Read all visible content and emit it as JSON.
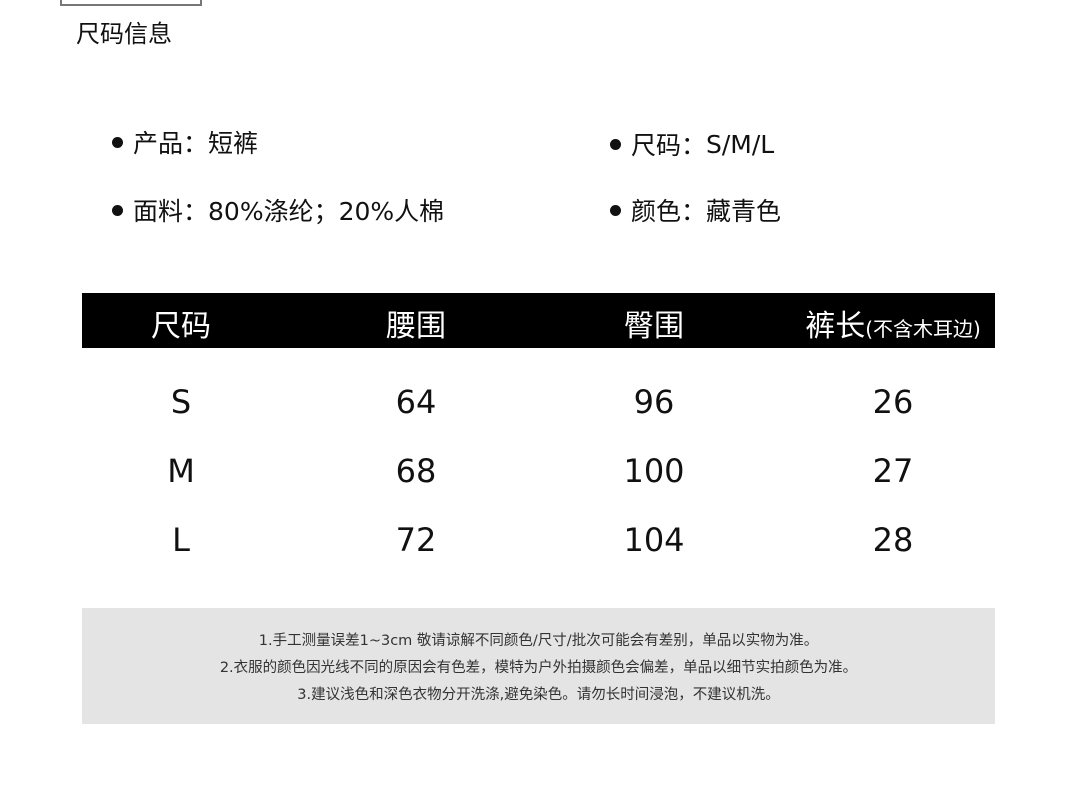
{
  "section_title": "尺码信息",
  "specs": [
    {
      "label": "产品：",
      "value": "短裤"
    },
    {
      "label": "尺码：",
      "value": "S/M/L"
    },
    {
      "label": "面料：",
      "value": "80%涤纶；20%人棉"
    },
    {
      "label": "颜色：",
      "value": "藏青色"
    }
  ],
  "table": {
    "headers": [
      "尺码",
      "腰围",
      "臀围",
      "裤长"
    ],
    "header_note": "(不含木耳边)",
    "rows": [
      [
        "S",
        "64",
        "96",
        "26"
      ],
      [
        "M",
        "68",
        "100",
        "27"
      ],
      [
        "L",
        "72",
        "104",
        "28"
      ]
    ]
  },
  "notes": [
    "1.手工测量误差1~3cm 敬请谅解不同颜色/尺寸/批次可能会有差别，单品以实物为准。",
    "2.衣服的颜色因光线不同的原因会有色差，模特为户外拍摄颜色会偏差，单品以细节实拍颜色为准。",
    "3.建议浅色和深色衣物分开洗涤,避免染色。请勿长时间浸泡，不建议机洗。"
  ]
}
